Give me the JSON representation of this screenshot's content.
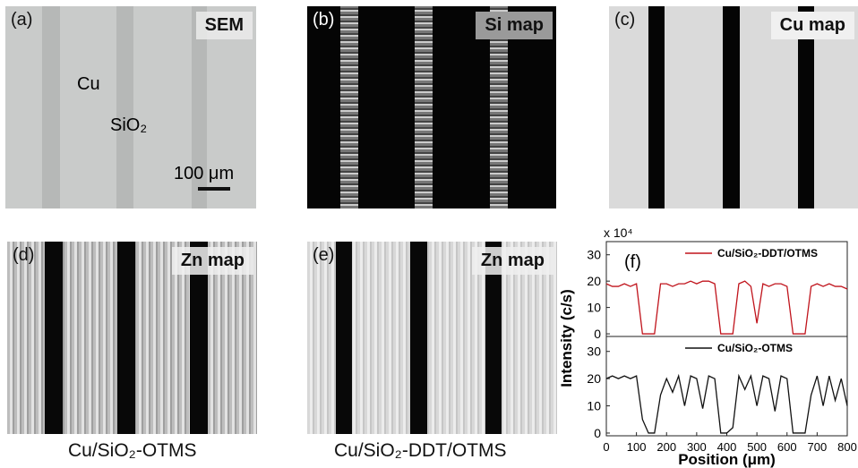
{
  "panels": [
    {
      "label": "(a)",
      "tag": "SEM",
      "notes": [
        "Cu",
        "SiO₂"
      ],
      "scale_bar": "100 μm"
    },
    {
      "label": "(b)",
      "tag": "Si map"
    },
    {
      "label": "(c)",
      "tag": "Cu map"
    },
    {
      "label": "(d)",
      "tag": "Zn map",
      "caption": "Cu/SiO₂-OTMS"
    },
    {
      "label": "(e)",
      "tag": "Zn map",
      "caption": "Cu/SiO₂-DDT/OTMS"
    }
  ],
  "chart_label": "(f)",
  "chart_data": [
    {
      "type": "line",
      "y_label": "Intensity (c/s)",
      "multiplier": "x 10⁴",
      "x": [
        0,
        20,
        40,
        60,
        80,
        100,
        120,
        140,
        160,
        180,
        200,
        220,
        240,
        260,
        280,
        300,
        320,
        340,
        360,
        380,
        400,
        420,
        440,
        460,
        480,
        500,
        520,
        540,
        560,
        580,
        600,
        620,
        640,
        660,
        680,
        700,
        720,
        740,
        760,
        780,
        800
      ],
      "series": [
        {
          "name": "Cu/SiO₂-DDT/OTMS",
          "color": "#c0141c",
          "values": [
            19,
            18,
            18,
            19,
            18,
            19,
            0,
            0,
            0,
            19,
            19,
            18,
            19,
            19,
            20,
            19,
            20,
            20,
            19,
            0,
            0,
            0,
            19,
            20,
            18,
            4,
            19,
            18,
            19,
            19,
            18,
            0,
            0,
            0,
            18,
            19,
            18,
            19,
            18,
            18,
            17
          ]
        }
      ],
      "xlim": [
        0,
        800
      ],
      "ylim": [
        -1,
        35
      ],
      "yticks": [
        0,
        10,
        20,
        30
      ]
    },
    {
      "type": "line",
      "x_label": "Position (μm)",
      "x": [
        0,
        20,
        40,
        60,
        80,
        100,
        120,
        140,
        160,
        180,
        200,
        220,
        240,
        260,
        280,
        300,
        320,
        340,
        360,
        380,
        400,
        420,
        440,
        460,
        480,
        500,
        520,
        540,
        560,
        580,
        600,
        620,
        640,
        660,
        680,
        700,
        720,
        740,
        760,
        780,
        800
      ],
      "series": [
        {
          "name": "Cu/SiO₂-OTMS",
          "color": "#111111",
          "values": [
            20,
            21,
            20,
            21,
            20,
            21,
            5,
            0,
            0,
            14,
            20,
            15,
            21,
            10,
            21,
            20,
            9,
            21,
            20,
            0,
            0,
            2,
            21,
            16,
            21,
            10,
            21,
            20,
            8,
            21,
            20,
            0,
            0,
            0,
            14,
            21,
            10,
            21,
            12,
            20,
            10
          ]
        }
      ],
      "xlim": [
        0,
        800
      ],
      "ylim": [
        -1,
        35.5
      ],
      "yticks": [
        0,
        10,
        20,
        30
      ],
      "xticks": [
        0,
        100,
        200,
        300,
        400,
        500,
        600,
        700,
        800
      ]
    }
  ]
}
